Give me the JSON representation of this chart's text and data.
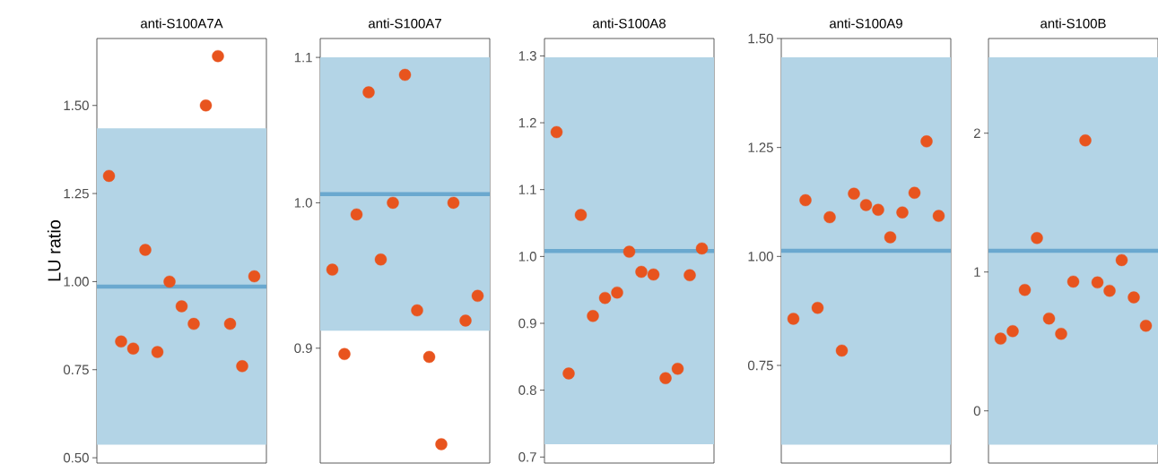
{
  "chart_data": [
    {
      "type": "scatter",
      "title": "anti-S100A7A",
      "ylabel": "LU ratio",
      "categories": [
        null,
        null,
        null,
        null,
        null,
        null,
        null,
        null,
        null,
        null,
        null,
        null,
        null
      ],
      "values": [
        1.3,
        0.83,
        0.81,
        1.09,
        0.8,
        1.0,
        0.93,
        0.88,
        1.5,
        1.64,
        0.88,
        0.76,
        1.015
      ],
      "color": "#e8541e",
      "ylim": [
        0.485,
        1.69
      ],
      "yticks": [
        {
          "value": 0.5,
          "label": "0.50"
        },
        {
          "value": 0.75,
          "label": "0.75"
        },
        {
          "value": 1.0,
          "label": "1.00"
        },
        {
          "value": 1.25,
          "label": "1.25"
        },
        {
          "value": 1.5,
          "label": "1.50"
        }
      ],
      "bands": [
        {
          "axis": "y",
          "from": 0.537,
          "to": 1.435,
          "color": "#b3d4e6"
        }
      ],
      "ref_lines": [
        {
          "axis": "y",
          "value": 0.986,
          "color": "#6aa8cf"
        }
      ],
      "tick_labels": "y"
    },
    {
      "type": "scatter",
      "title": "anti-S100A7",
      "categories": [
        null,
        null,
        null,
        null,
        null,
        null,
        null,
        null,
        null,
        null,
        null,
        null,
        null
      ],
      "values": [
        0.954,
        0.896,
        0.992,
        1.076,
        0.961,
        1.0,
        1.088,
        0.926,
        0.894,
        0.834,
        1.0,
        0.919,
        0.936
      ],
      "color": "#e8541e",
      "ylim": [
        0.821,
        1.113
      ],
      "yticks": [
        0.9,
        {
          "value": 1.0,
          "label": "1.0"
        },
        1.1
      ],
      "bands": [
        {
          "axis": "y",
          "from": 0.912,
          "to": 1.1,
          "color": "#b3d4e6"
        }
      ],
      "ref_lines": [
        {
          "axis": "y",
          "value": 1.006,
          "color": "#6aa8cf"
        }
      ],
      "tick_labels": "y"
    },
    {
      "type": "scatter",
      "title": "anti-S100A8",
      "categories": [
        null,
        null,
        null,
        null,
        null,
        null,
        null,
        null,
        null,
        null,
        null,
        null,
        null
      ],
      "values": [
        1.186,
        0.825,
        1.062,
        0.911,
        0.938,
        0.946,
        1.007,
        0.977,
        0.973,
        0.818,
        0.832,
        0.972,
        1.012
      ],
      "color": "#e8541e",
      "ylim": [
        0.691,
        1.326
      ],
      "yticks": [
        0.7,
        0.8,
        0.9,
        {
          "value": 1.0,
          "label": "1.0"
        },
        1.1,
        1.2,
        1.3
      ],
      "bands": [
        {
          "axis": "y",
          "from": 0.719,
          "to": 1.298,
          "color": "#b3d4e6"
        }
      ],
      "ref_lines": [
        {
          "axis": "y",
          "value": 1.008,
          "color": "#6aa8cf"
        }
      ],
      "tick_labels": "y"
    },
    {
      "type": "scatter",
      "title": "anti-S100A9",
      "categories": [
        null,
        null,
        null,
        null,
        null,
        null,
        null,
        null,
        null,
        null,
        null,
        null,
        null
      ],
      "values": [
        0.857,
        1.129,
        0.882,
        1.09,
        0.784,
        1.144,
        1.118,
        1.107,
        1.044,
        1.101,
        1.146,
        1.264,
        1.093
      ],
      "color": "#e8541e",
      "ylim": [
        0.526,
        1.5
      ],
      "yticks": [
        {
          "value": 0.75,
          "label": "0.75"
        },
        {
          "value": 1.0,
          "label": "1.00"
        },
        {
          "value": 1.25,
          "label": "1.25"
        },
        {
          "value": 1.5,
          "label": "1.50"
        }
      ],
      "bands": [
        {
          "axis": "y",
          "from": 0.568,
          "to": 1.457,
          "color": "#b3d4e6"
        }
      ],
      "ref_lines": [
        {
          "axis": "y",
          "value": 1.013,
          "color": "#6aa8cf"
        }
      ],
      "tick_labels": "y"
    },
    {
      "type": "scatter",
      "title": "anti-S100B",
      "categories": [
        null,
        null,
        null,
        null,
        null,
        null,
        null,
        null,
        null,
        null,
        null,
        null,
        null
      ],
      "values": [
        0.52,
        0.574,
        0.871,
        1.245,
        0.665,
        0.555,
        0.931,
        1.948,
        0.925,
        0.865,
        1.086,
        0.817,
        0.613
      ],
      "color": "#e8541e",
      "ylim": [
        -0.376,
        2.682
      ],
      "yticks": [
        0,
        1,
        2
      ],
      "bands": [
        {
          "axis": "y",
          "from": -0.243,
          "to": 2.546,
          "color": "#b3d4e6"
        }
      ],
      "ref_lines": [
        {
          "axis": "y",
          "value": 1.153,
          "color": "#6aa8cf"
        }
      ],
      "tick_labels": "y"
    }
  ]
}
